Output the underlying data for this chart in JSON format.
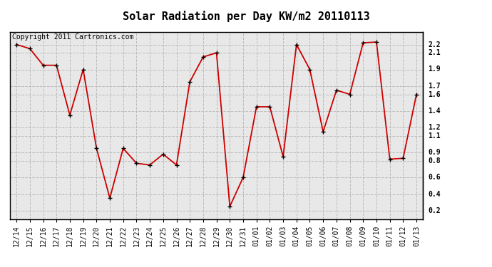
{
  "title": "Solar Radiation per Day KW/m2 20110113",
  "copyright_text": "Copyright 2011 Cartronics.com",
  "labels": [
    "12/14",
    "12/15",
    "12/16",
    "12/17",
    "12/18",
    "12/19",
    "12/20",
    "12/21",
    "12/22",
    "12/23",
    "12/24",
    "12/25",
    "12/26",
    "12/27",
    "12/28",
    "12/29",
    "12/30",
    "12/31",
    "01/01",
    "01/02",
    "01/03",
    "01/04",
    "01/05",
    "01/06",
    "01/07",
    "01/08",
    "01/09",
    "01/10",
    "01/11",
    "01/12",
    "01/13"
  ],
  "values": [
    2.2,
    2.15,
    1.95,
    1.95,
    1.35,
    1.9,
    0.95,
    0.35,
    0.95,
    0.77,
    0.75,
    0.88,
    0.75,
    1.75,
    2.05,
    2.1,
    0.25,
    0.6,
    1.45,
    1.45,
    0.85,
    2.2,
    1.9,
    1.15,
    1.65,
    1.6,
    2.22,
    2.23,
    0.82,
    0.83,
    1.6
  ],
  "line_color": "#cc0000",
  "marker_color": "#000000",
  "bg_color": "#ffffff",
  "plot_bg_color": "#e8e8e8",
  "grid_color": "#bbbbbb",
  "ylim_min": 0.1,
  "ylim_max": 2.35,
  "right_ytick_values": [
    2.2,
    2.1,
    1.9,
    1.7,
    1.6,
    1.4,
    1.2,
    1.1,
    0.9,
    0.8,
    0.6,
    0.4,
    0.2
  ],
  "right_ytick_labels": [
    "2.2",
    "2.1",
    "1.9",
    "1.7",
    "1.6",
    "1.4",
    "1.2",
    "1.1",
    "0.9",
    "0.8",
    "0.6",
    "0.4",
    "0.2"
  ],
  "title_fontsize": 11,
  "tick_fontsize": 7,
  "copyright_fontsize": 7
}
